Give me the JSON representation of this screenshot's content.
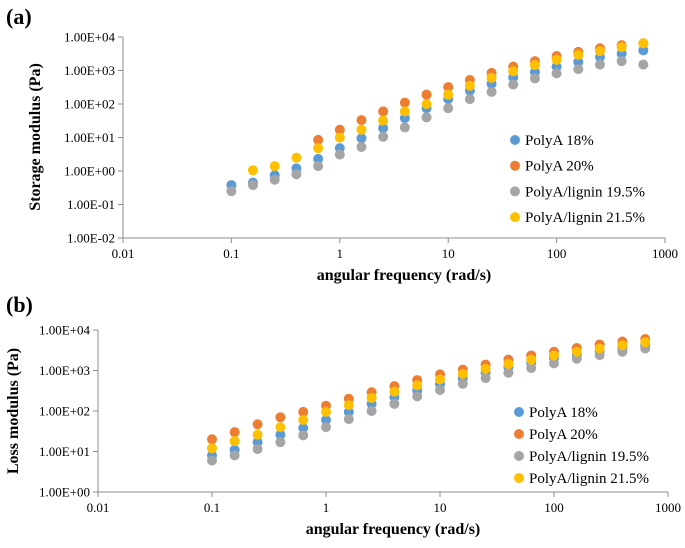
{
  "chart_data": [
    {
      "panel": "(a)",
      "type": "scatter",
      "xscale": "log",
      "yscale": "log",
      "xlim": [
        0.01,
        1000
      ],
      "ylim": [
        0.01,
        10000
      ],
      "xlabel": "angular frequency (rad/s)",
      "ylabel": "Storage modulus (Pa)",
      "xticks": [
        "0.01",
        "0.1",
        "1",
        "10",
        "100",
        "1000"
      ],
      "yticks": [
        "1.00E-02",
        "1.00E-01",
        "1.00E+00",
        "1.00E+01",
        "1.00E+02",
        "1.00E+03",
        "1.00E+04"
      ],
      "grid": false,
      "legend_position": "right",
      "x": [
        0.1,
        0.158,
        0.251,
        0.398,
        0.631,
        1.0,
        1.585,
        2.512,
        3.981,
        6.31,
        10.0,
        15.85,
        25.12,
        39.81,
        63.1,
        100.0,
        158.5,
        251.2,
        398.1,
        631.0
      ],
      "series": [
        {
          "name": "PolyA 18%",
          "color": "#5b9bd5",
          "values": [
            0.38,
            0.45,
            0.75,
            1.2,
            2.3,
            4.8,
            9.5,
            19,
            38,
            75,
            140,
            250,
            400,
            620,
            900,
            1300,
            1800,
            2500,
            3200,
            4000
          ]
        },
        {
          "name": "PolyA 20%",
          "color": "#ed7d31",
          "values": [
            null,
            null,
            null,
            null,
            8.5,
            17,
            33,
            60,
            110,
            190,
            320,
            520,
            850,
            1300,
            1900,
            2700,
            3600,
            4600,
            5700,
            6500
          ]
        },
        {
          "name": "PolyA/lignin 19.5%",
          "color": "#a5a5a5",
          "values": [
            0.25,
            0.38,
            0.55,
            0.8,
            1.4,
            3.1,
            5.2,
            10.5,
            20,
            40,
            75,
            140,
            230,
            380,
            580,
            820,
            1100,
            1500,
            1900,
            1500
          ]
        },
        {
          "name": "PolyA/lignin 21.5%",
          "color": "#ffc000",
          "values": [
            null,
            1.05,
            1.4,
            2.5,
            4.8,
            10,
            17,
            32,
            60,
            100,
            190,
            350,
            600,
            950,
            1450,
            2100,
            2900,
            3800,
            5000,
            6500
          ]
        }
      ]
    },
    {
      "panel": "(b)",
      "type": "scatter",
      "xscale": "log",
      "yscale": "log",
      "xlim": [
        0.01,
        1000
      ],
      "ylim": [
        1,
        10000
      ],
      "xlabel": "angular frequency (rad/s)",
      "ylabel": "Loss modulus (Pa)",
      "xticks": [
        "0.01",
        "0.1",
        "1",
        "10",
        "100",
        "1000"
      ],
      "yticks": [
        "1.00E+00",
        "1.00E+01",
        "1.00E+02",
        "1.00E+03",
        "1.00E+04"
      ],
      "grid": false,
      "legend_position": "right",
      "x": [
        0.1,
        0.158,
        0.251,
        0.398,
        0.631,
        1.0,
        1.585,
        2.512,
        3.981,
        6.31,
        10.0,
        15.85,
        25.12,
        39.81,
        63.1,
        100.0,
        158.5,
        251.2,
        398.1,
        631.0
      ],
      "series": [
        {
          "name": "PolyA 18%",
          "color": "#5b9bd5",
          "values": [
            8,
            11,
            17,
            26,
            38,
            60,
            95,
            150,
            220,
            320,
            460,
            640,
            880,
            1200,
            1550,
            2000,
            2500,
            3000,
            3600,
            4200
          ]
        },
        {
          "name": "PolyA 20%",
          "color": "#ed7d31",
          "values": [
            20,
            30,
            47,
            70,
            95,
            135,
            200,
            290,
            410,
            580,
            800,
            1050,
            1400,
            1850,
            2350,
            2900,
            3600,
            4400,
            5200,
            6000
          ]
        },
        {
          "name": "PolyA/lignin 19.5%",
          "color": "#a5a5a5",
          "values": [
            6,
            8,
            11.5,
            17,
            25,
            40,
            63,
            100,
            150,
            230,
            330,
            470,
            650,
            880,
            1150,
            1500,
            1950,
            2400,
            2900,
            3500
          ]
        },
        {
          "name": "PolyA/lignin 21.5%",
          "color": "#ffc000",
          "values": [
            12,
            18,
            26,
            40,
            60,
            95,
            140,
            210,
            300,
            430,
            600,
            820,
            1100,
            1450,
            1850,
            2350,
            2900,
            3500,
            4200,
            5000
          ]
        }
      ]
    }
  ]
}
